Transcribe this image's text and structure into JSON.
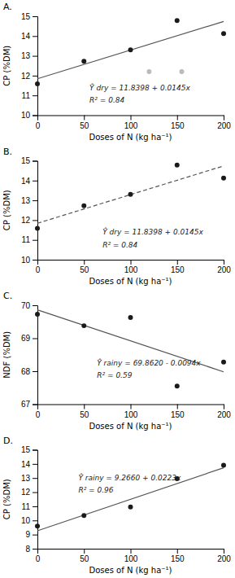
{
  "chart_data": [
    {
      "type": "scatter",
      "title": "A.",
      "xlabel": "Doses of N (kg ha⁻¹)",
      "ylabel": "CP (%DM)",
      "xlim": [
        0,
        200
      ],
      "xticks": [
        0,
        50,
        100,
        150,
        200
      ],
      "ylim": [
        10,
        15
      ],
      "yticks": [
        10,
        11,
        12,
        13,
        14,
        15
      ],
      "grid": false,
      "series": [
        {
          "type": "scatter",
          "marker": "circle",
          "color": "#bbbbbb",
          "x": [
            120,
            155
          ],
          "values": [
            12.2,
            12.2
          ]
        },
        {
          "type": "scatter",
          "marker": "circle",
          "color": "#1a1a1a",
          "x": [
            0,
            50,
            100,
            150,
            200
          ],
          "values": [
            11.58,
            12.73,
            13.3,
            14.78,
            14.13
          ]
        },
        {
          "type": "line",
          "line_style": "solid",
          "color": "#555555",
          "x": [
            0,
            200
          ],
          "values": [
            11.8398,
            14.7398
          ]
        }
      ],
      "annotations": [
        "Ŷ dry = 11.8398 + 0.0145x",
        "R² = 0.84"
      ]
    },
    {
      "type": "scatter",
      "title": "B.",
      "xlabel": "Doses of N (kg ha⁻¹)",
      "ylabel": "CP (%DM)",
      "xlim": [
        0,
        200
      ],
      "xticks": [
        0,
        50,
        100,
        150,
        200
      ],
      "ylim": [
        10,
        15
      ],
      "yticks": [
        10,
        11,
        12,
        13,
        14,
        15
      ],
      "grid": false,
      "series": [
        {
          "type": "scatter",
          "marker": "circle",
          "color": "#1a1a1a",
          "x": [
            0,
            50,
            100,
            150,
            200
          ],
          "values": [
            11.58,
            12.73,
            13.3,
            14.78,
            14.13
          ]
        },
        {
          "type": "line",
          "line_style": "dashed",
          "color": "#555555",
          "x": [
            0,
            200
          ],
          "values": [
            11.8398,
            14.7398
          ]
        }
      ],
      "annotations": [
        "Ŷ dry = 11.8398 + 0.0145x",
        "R² = 0.84"
      ]
    },
    {
      "type": "scatter",
      "title": "C.",
      "xlabel": "Doses of N (kg ha⁻¹)",
      "ylabel": "NDF (%DM)",
      "xlim": [
        0,
        200
      ],
      "xticks": [
        0,
        50,
        100,
        150,
        200
      ],
      "ylim": [
        67,
        70
      ],
      "yticks": [
        67,
        68,
        69,
        70
      ],
      "grid": false,
      "series": [
        {
          "type": "scatter",
          "marker": "circle",
          "color": "#1a1a1a",
          "x": [
            0,
            50,
            100,
            150,
            200
          ],
          "values": [
            69.73,
            69.38,
            69.63,
            67.55,
            68.28
          ]
        },
        {
          "type": "line",
          "line_style": "solid",
          "color": "#555555",
          "x": [
            0,
            200
          ],
          "values": [
            69.862,
            67.982
          ]
        }
      ],
      "annotations": [
        "Ŷ rainy = 69.8620 - 0.0094x",
        "R² = 0.59"
      ]
    },
    {
      "type": "scatter",
      "title": "D.",
      "xlabel": "Doses of N (kg ha⁻¹)",
      "ylabel": "CP (%DM)",
      "xlim": [
        0,
        200
      ],
      "xticks": [
        0,
        50,
        100,
        150,
        200
      ],
      "ylim": [
        8,
        15
      ],
      "yticks": [
        8,
        9,
        10,
        11,
        12,
        13,
        14,
        15
      ],
      "grid": false,
      "series": [
        {
          "type": "scatter",
          "marker": "circle",
          "color": "#1a1a1a",
          "x": [
            0,
            50,
            100,
            150,
            200
          ],
          "values": [
            9.6,
            10.35,
            10.95,
            12.95,
            13.9
          ]
        },
        {
          "type": "line",
          "line_style": "solid",
          "color": "#555555",
          "x": [
            0,
            200
          ],
          "values": [
            9.266,
            13.726
          ]
        }
      ],
      "annotations": [
        "Ŷ rainy = 9.2660 + 0.0223x",
        "R² = 0.96"
      ]
    }
  ]
}
